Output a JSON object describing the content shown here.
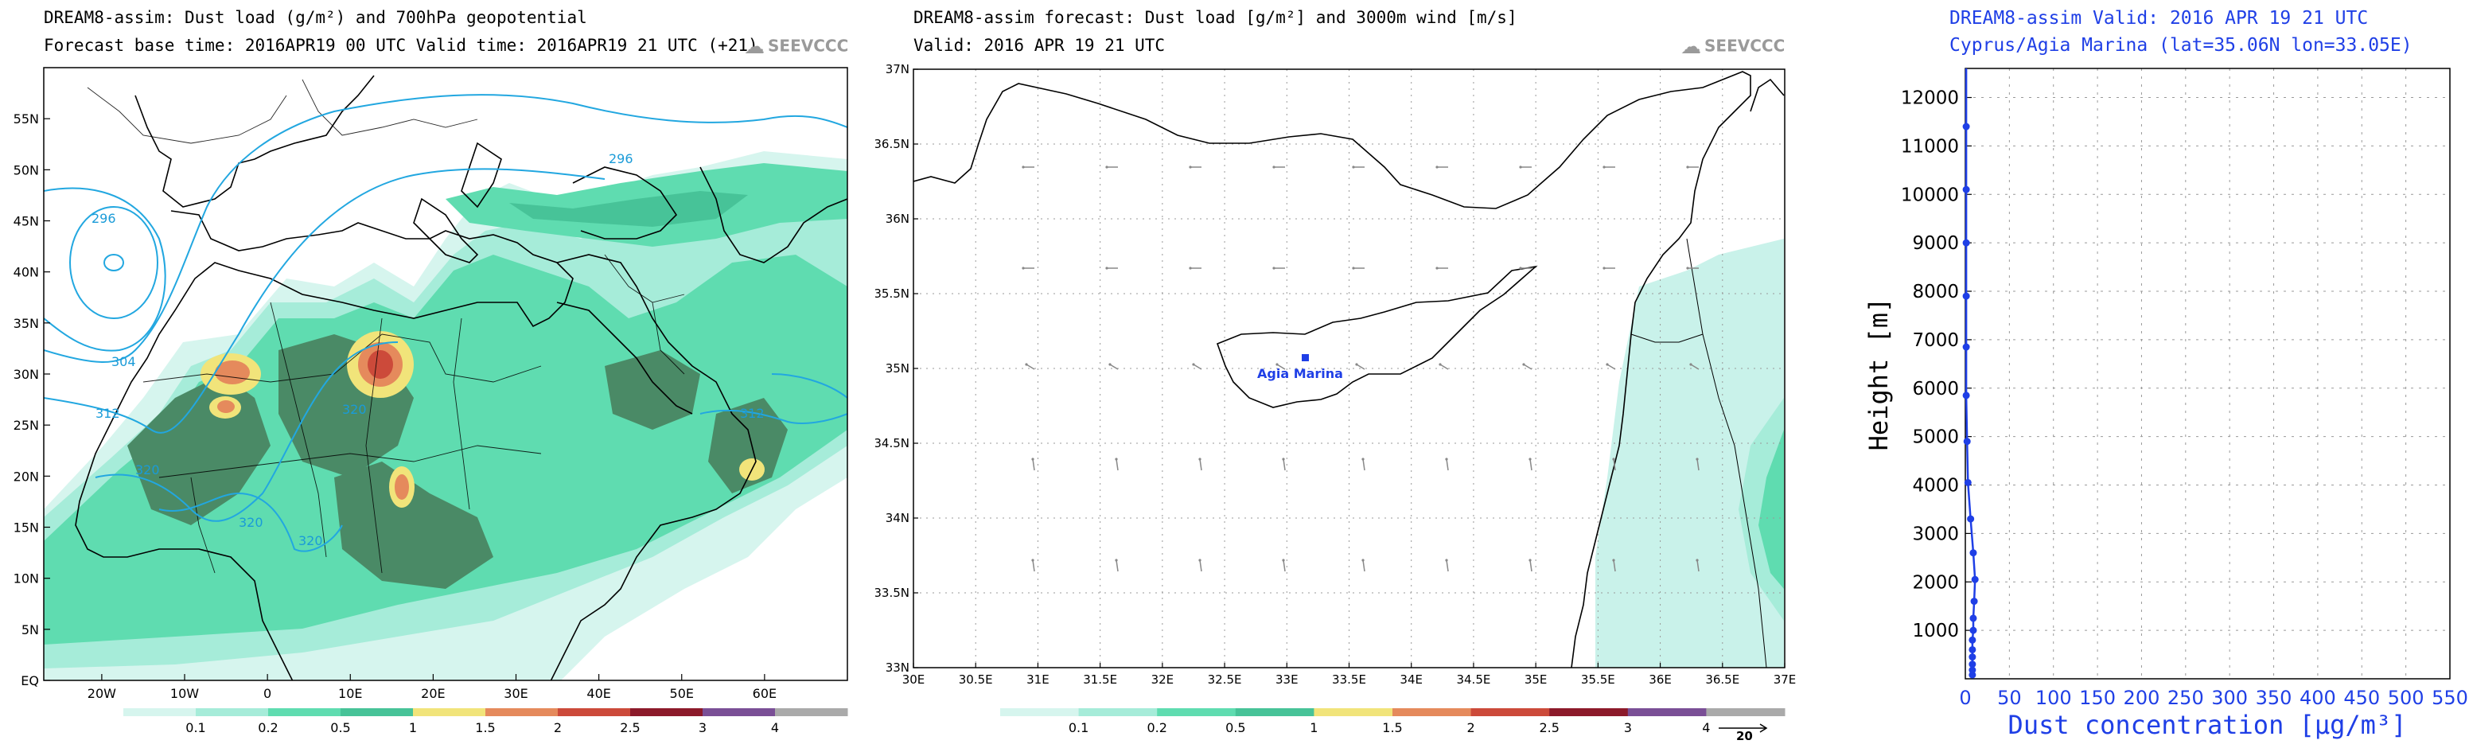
{
  "panel1": {
    "title_line1": "DREAM8-assim: Dust load (g/m²) and 700hPa geopotential",
    "title_line2": "Forecast base time: 2016APR19 00 UTC   Valid time: 2016APR19 21 UTC  (+21)",
    "brand": "SEEVCCC"
  },
  "panel2": {
    "title_line1": "DREAM8-assim forecast: Dust load [g/m²] and 3000m wind [m/s]",
    "title_line2": "Valid: 2016 APR 19   21 UTC",
    "brand": "SEEVCCC",
    "station_label": "Agia Marina",
    "wind_ref_value": "20"
  },
  "panel3": {
    "title_line1": "DREAM8-assim   Valid: 2016 APR 19   21 UTC",
    "title_line2": "Cyprus/Agia Marina (lat=35.06N lon=33.05E)"
  },
  "colors": {
    "dust": [
      "#d6f5ee",
      "#a6ecd9",
      "#5fdcb0",
      "#47c398",
      "#f1e47a",
      "#e58a5c",
      "#cc4a3a",
      "#8c1a2a",
      "#7a4f96",
      "#aaaaaa"
    ],
    "contour": "#22a7e0",
    "profile": "#1f3fe6",
    "land_dark": "#4a8a66"
  },
  "chart_data": [
    {
      "type": "heatmap",
      "title": "DREAM8-assim: Dust load (g/m²) and 700hPa geopotential",
      "xlabel": "",
      "ylabel": "",
      "xlim": [
        -27,
        70
      ],
      "ylim": [
        0,
        60
      ],
      "x_ticks": [
        "20W",
        "10W",
        "0",
        "10E",
        "20E",
        "30E",
        "40E",
        "50E",
        "60E"
      ],
      "y_ticks": [
        "EQ",
        "5N",
        "10N",
        "15N",
        "20N",
        "25N",
        "30N",
        "35N",
        "40N",
        "45N",
        "50N",
        "55N"
      ],
      "colorbar": {
        "levels": [
          "0.1",
          "0.2",
          "0.5",
          "1",
          "1.5",
          "2",
          "2.5",
          "3",
          "4"
        ],
        "unit": "g/m²"
      },
      "contours": [
        {
          "label": "296",
          "geopotential": 296
        },
        {
          "label": "304",
          "geopotential": 304
        },
        {
          "label": "312",
          "geopotential": 312
        },
        {
          "label": "320",
          "geopotential": 320
        }
      ],
      "annotations": [
        "296",
        "296",
        "304",
        "312",
        "320",
        "320",
        "320",
        "320",
        "312"
      ]
    },
    {
      "type": "heatmap",
      "title": "DREAM8-assim forecast: Dust load [g/m²] and 3000m wind [m/s]",
      "xlim": [
        30,
        37
      ],
      "ylim": [
        33,
        37
      ],
      "x_ticks": [
        "30E",
        "30.5E",
        "31E",
        "31.5E",
        "32E",
        "32.5E",
        "33E",
        "33.5E",
        "34E",
        "34.5E",
        "35E",
        "35.5E",
        "36E",
        "36.5E",
        "37E"
      ],
      "y_ticks": [
        "33N",
        "33.5N",
        "34N",
        "34.5N",
        "35N",
        "35.5N",
        "36N",
        "36.5N",
        "37N"
      ],
      "colorbar": {
        "levels": [
          "0.1",
          "0.2",
          "0.5",
          "1",
          "1.5",
          "2",
          "2.5",
          "3",
          "4"
        ],
        "unit": "g/m²"
      },
      "station": {
        "name": "Agia Marina",
        "lon": 33.05,
        "lat": 35.06
      },
      "wind_reference_ms": 20
    },
    {
      "type": "line",
      "title": "Cyprus/Agia Marina (lat=35.06N lon=33.05E)",
      "xlabel": "Dust concentration [μg/m³]",
      "ylabel": "Height [m]",
      "xlim": [
        0,
        550
      ],
      "ylim": [
        0,
        12600
      ],
      "x_ticks": [
        "0",
        "50",
        "100",
        "150",
        "200",
        "250",
        "300",
        "350",
        "400",
        "450",
        "500",
        "550"
      ],
      "y_ticks": [
        "1000",
        "2000",
        "3000",
        "4000",
        "5000",
        "6000",
        "7000",
        "8000",
        "9000",
        "10000",
        "11000",
        "12000"
      ],
      "series": [
        {
          "name": "Dust concentration",
          "points": [
            {
              "x": 8,
              "y": 80
            },
            {
              "x": 8,
              "y": 180
            },
            {
              "x": 8,
              "y": 300
            },
            {
              "x": 8,
              "y": 450
            },
            {
              "x": 8,
              "y": 600
            },
            {
              "x": 8,
              "y": 800
            },
            {
              "x": 9,
              "y": 1000
            },
            {
              "x": 9,
              "y": 1250
            },
            {
              "x": 10,
              "y": 1600
            },
            {
              "x": 11,
              "y": 2050
            },
            {
              "x": 9,
              "y": 2600
            },
            {
              "x": 6,
              "y": 3300
            },
            {
              "x": 3,
              "y": 4050
            },
            {
              "x": 2,
              "y": 4900
            },
            {
              "x": 1,
              "y": 5850
            },
            {
              "x": 1,
              "y": 6850
            },
            {
              "x": 1,
              "y": 7900
            },
            {
              "x": 1,
              "y": 9000
            },
            {
              "x": 1,
              "y": 10100
            },
            {
              "x": 1,
              "y": 11400
            },
            {
              "x": 1,
              "y": 12600
            }
          ]
        }
      ]
    }
  ]
}
